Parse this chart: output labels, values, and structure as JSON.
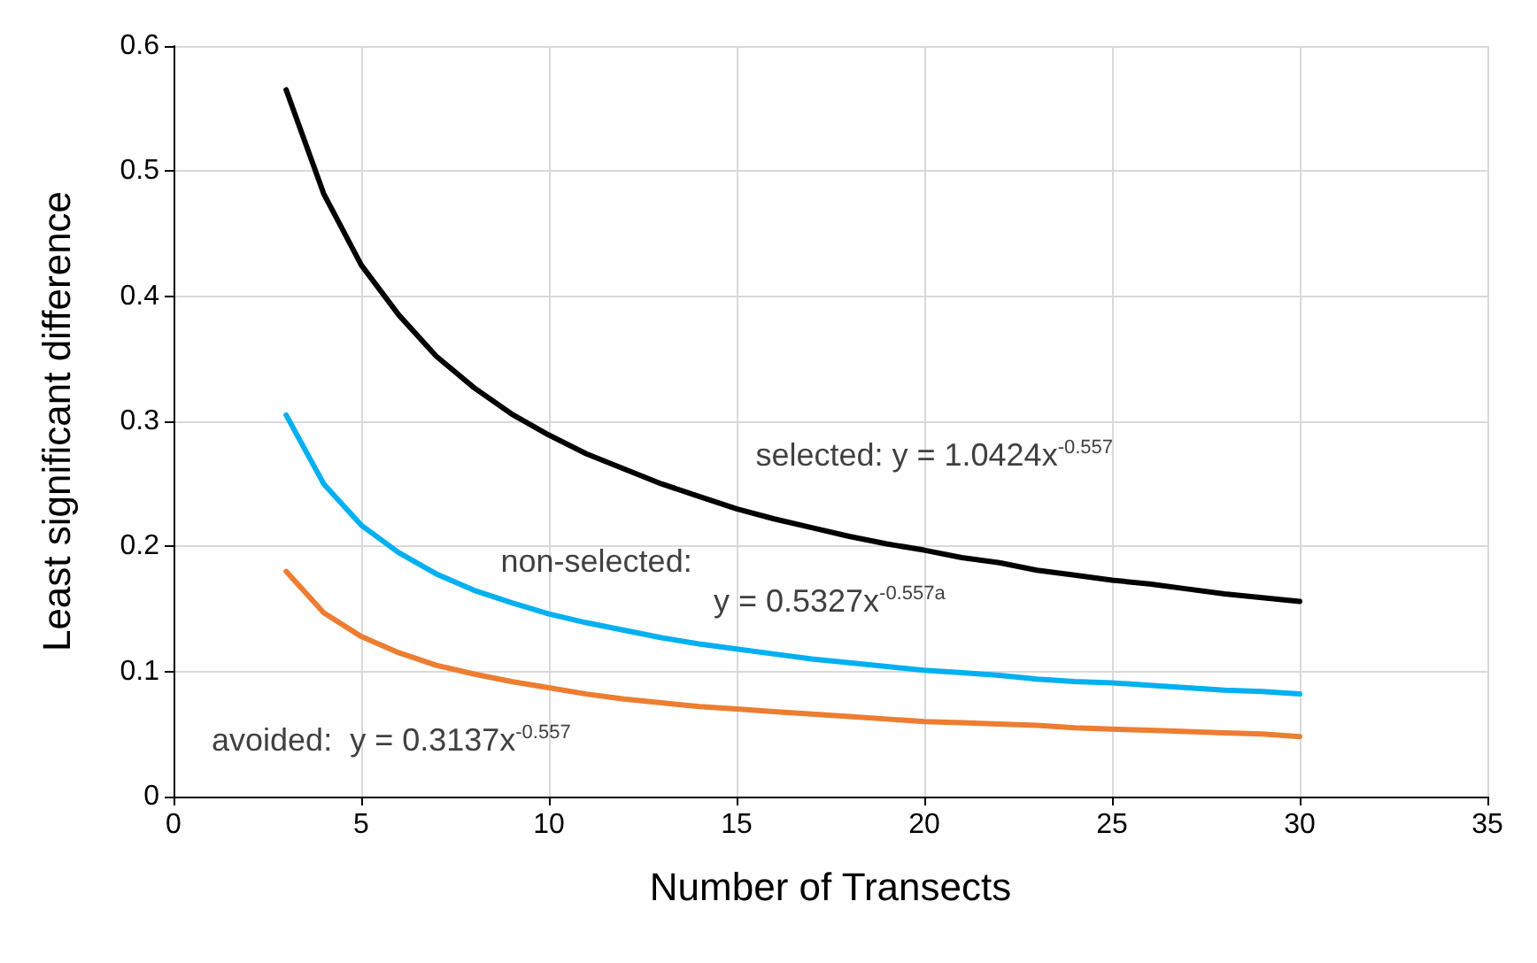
{
  "chart_data": {
    "type": "line",
    "xlabel": "Number of Transects",
    "ylabel": "Least significant difference",
    "x": [
      3,
      4,
      5,
      6,
      7,
      8,
      9,
      10,
      11,
      12,
      13,
      14,
      15,
      16,
      17,
      18,
      19,
      20,
      21,
      22,
      23,
      24,
      25,
      26,
      27,
      28,
      29,
      30
    ],
    "series": [
      {
        "color": "#000000",
        "values": [
          0.565,
          0.482,
          0.425,
          0.385,
          0.352,
          0.327,
          0.306,
          0.289,
          0.274,
          0.262,
          0.25,
          0.24,
          0.23,
          0.222,
          0.215,
          0.208,
          0.202,
          0.197,
          0.191,
          0.187,
          0.181,
          0.177,
          0.173,
          0.17,
          0.166,
          0.162,
          0.159,
          0.156
        ]
      },
      {
        "color": "#00b0f0",
        "values": [
          0.305,
          0.25,
          0.217,
          0.195,
          0.178,
          0.165,
          0.155,
          0.146,
          0.139,
          0.133,
          0.127,
          0.122,
          0.118,
          0.114,
          0.11,
          0.107,
          0.104,
          0.101,
          0.099,
          0.097,
          0.094,
          0.092,
          0.091,
          0.089,
          0.087,
          0.085,
          0.084,
          0.082
        ]
      },
      {
        "color": "#ed7d31",
        "values": [
          0.18,
          0.147,
          0.128,
          0.115,
          0.105,
          0.098,
          0.092,
          0.087,
          0.082,
          0.078,
          0.075,
          0.072,
          0.07,
          0.068,
          0.066,
          0.064,
          0.062,
          0.06,
          0.059,
          0.058,
          0.057,
          0.055,
          0.054,
          0.053,
          0.052,
          0.051,
          0.05,
          0.048
        ]
      }
    ],
    "annotations": [
      "selected: y = 1.0424x$^{-0.557}$",
      "non-selected:",
      "y = 0.5327x$^{-0.557a}$",
      "avoided:  y = 0.3137x$^{-0.557}$"
    ],
    "xlim": [
      0,
      35
    ],
    "xticks": [
      0,
      5,
      10,
      15,
      20,
      25,
      30,
      35
    ],
    "ylim": [
      0,
      0.6
    ],
    "yticks": [
      0,
      0.1,
      0.2,
      0.3,
      0.4,
      0.5,
      0.6
    ],
    "grid": true,
    "marker": "none",
    "line_style": "solid"
  }
}
